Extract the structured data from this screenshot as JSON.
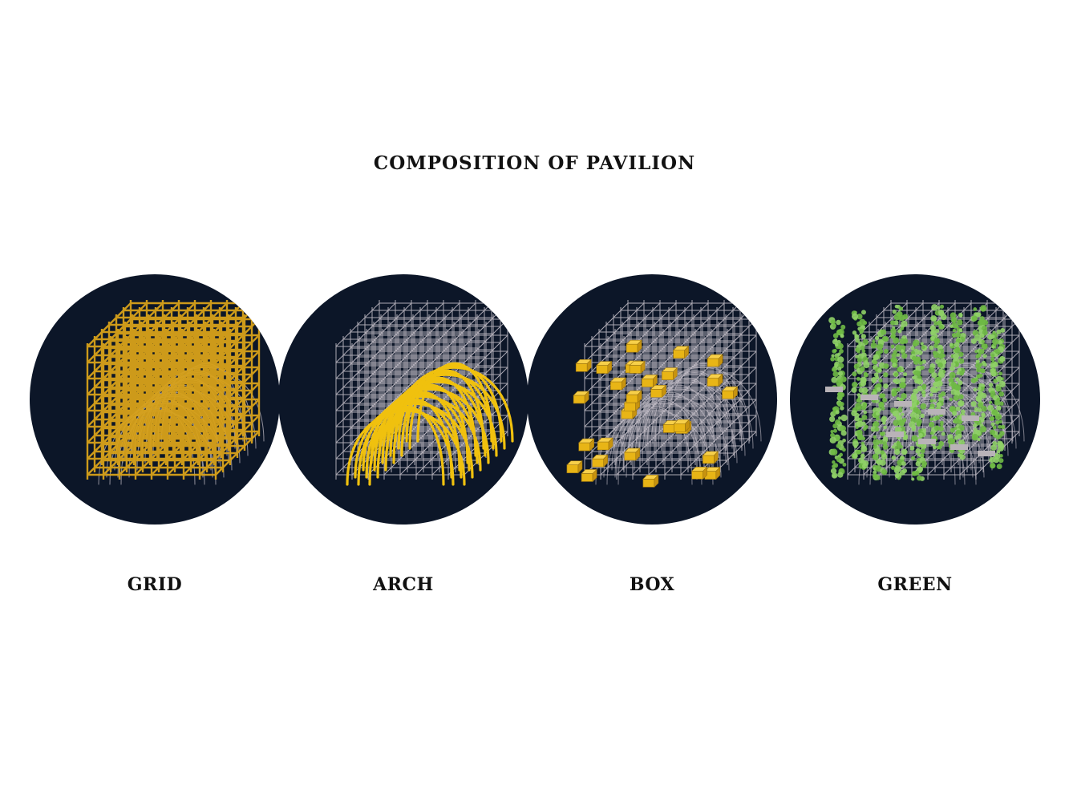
{
  "title": "COMPOSITION OF PAVILION",
  "colors": {
    "disc": "#0c1628",
    "frame": "#c9c3cc",
    "accent_gold": "#d8a21a",
    "accent_yellow": "#f0c10e",
    "box_face": "#e8b516",
    "green": "#6fba45"
  },
  "panels": [
    {
      "label": "GRID",
      "layer": "grid"
    },
    {
      "label": "ARCH",
      "layer": "arch"
    },
    {
      "label": "BOX",
      "layer": "box"
    },
    {
      "label": "GREEN",
      "layer": "green"
    }
  ]
}
